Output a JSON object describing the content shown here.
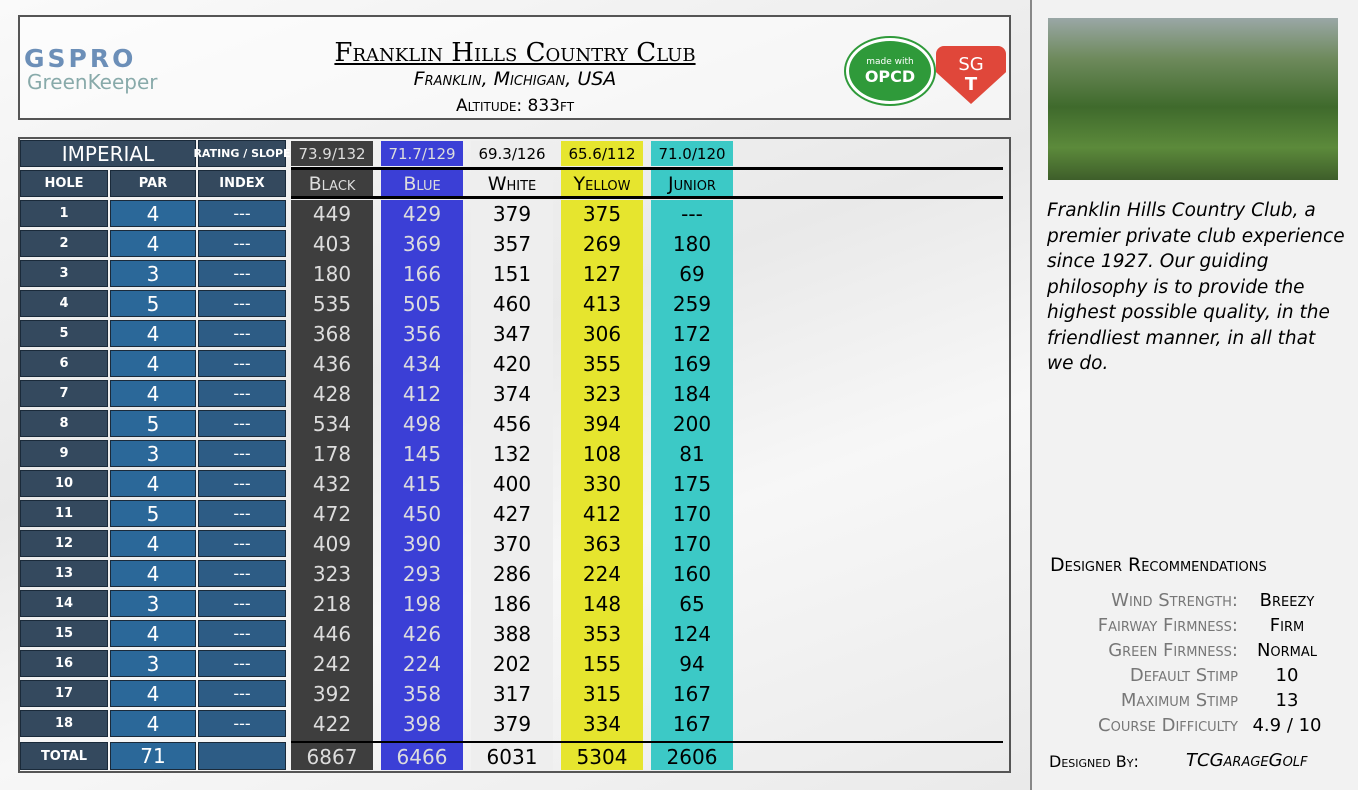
{
  "header": {
    "logo_top": "GSPRO",
    "logo_bottom": "GreenKeeper",
    "title": "Franklin Hills Country Club",
    "location": "Franklin, Michigan, USA",
    "altitude": "Altitude: 833ft",
    "badge_small": "made with",
    "badge_main": "OPCD",
    "badge2_top": "SG",
    "badge2_bottom": "T"
  },
  "table": {
    "units": "IMPERIAL",
    "rating_label": "RATING / SLOPE",
    "columns": [
      "HOLE",
      "PAR",
      "INDEX"
    ],
    "holes": [
      1,
      2,
      3,
      4,
      5,
      6,
      7,
      8,
      9,
      10,
      11,
      12,
      13,
      14,
      15,
      16,
      17,
      18
    ],
    "par": [
      4,
      4,
      3,
      5,
      4,
      4,
      4,
      5,
      3,
      4,
      5,
      4,
      4,
      3,
      4,
      3,
      4,
      4
    ],
    "index": [
      "---",
      "---",
      "---",
      "---",
      "---",
      "---",
      "---",
      "---",
      "---",
      "---",
      "---",
      "---",
      "---",
      "---",
      "---",
      "---",
      "---",
      "---"
    ],
    "total_label": "TOTAL",
    "par_total": 71,
    "tees": [
      {
        "name": "Black",
        "rating": "73.9/132",
        "color": "#3e3e3e",
        "yards": [
          449,
          403,
          180,
          535,
          368,
          436,
          428,
          534,
          178,
          432,
          472,
          409,
          323,
          218,
          446,
          242,
          392,
          422
        ],
        "total": 6867
      },
      {
        "name": "Blue",
        "rating": "71.7/129",
        "color": "#3b3fd6",
        "yards": [
          429,
          369,
          166,
          505,
          356,
          434,
          412,
          498,
          145,
          415,
          450,
          390,
          293,
          198,
          426,
          224,
          358,
          398
        ],
        "total": 6466
      },
      {
        "name": "White",
        "rating": "69.3/126",
        "color": "#eeeeee",
        "yards": [
          379,
          357,
          151,
          460,
          347,
          420,
          374,
          456,
          132,
          400,
          427,
          370,
          286,
          186,
          388,
          202,
          317,
          379
        ],
        "total": 6031
      },
      {
        "name": "Yellow",
        "rating": "65.6/112",
        "color": "#e6e52e",
        "yards": [
          375,
          269,
          127,
          413,
          306,
          355,
          323,
          394,
          108,
          330,
          412,
          363,
          224,
          148,
          353,
          155,
          315,
          334
        ],
        "total": 5304
      },
      {
        "name": "Junior",
        "rating": "71.0/120",
        "color": "#3cc9c6",
        "yards": [
          "---",
          180,
          69,
          259,
          172,
          169,
          184,
          200,
          81,
          175,
          170,
          170,
          160,
          65,
          124,
          94,
          167,
          167
        ],
        "total": 2606
      }
    ]
  },
  "sidebar": {
    "description": "Franklin Hills Country Club, a premier private club experience since 1927. Our guiding philosophy is to provide the highest possible quality, in the friendliest manner, in all that we do.",
    "recommendations_title": "Designer Recommendations",
    "recommendations": [
      {
        "label": "Wind Strength:",
        "value": "Breezy"
      },
      {
        "label": "Fairway Firmness:",
        "value": "Firm"
      },
      {
        "label": "Green Firmness:",
        "value": "Normal"
      },
      {
        "label": "Default Stimp",
        "value": "10"
      },
      {
        "label": "Maximum Stimp",
        "value": "13"
      },
      {
        "label": "Course Difficulty",
        "value": "4.9 / 10"
      }
    ],
    "designed_by_label": "Designed By:",
    "designer": "TCGarageGolf"
  }
}
